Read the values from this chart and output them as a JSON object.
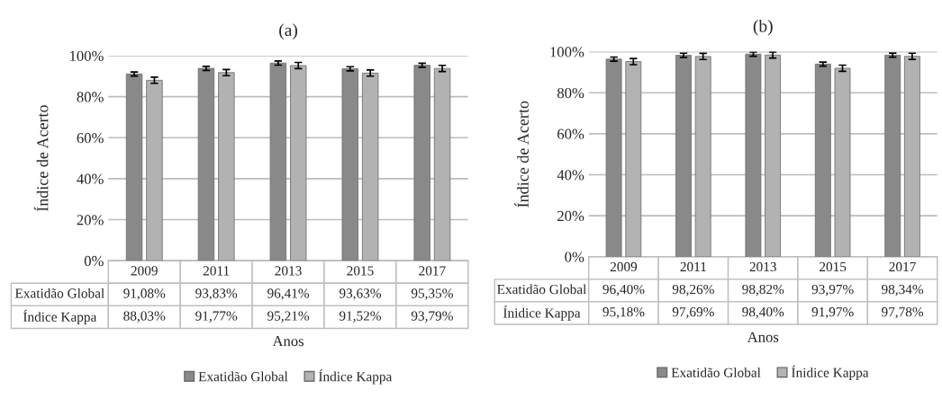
{
  "chart_data": [
    {
      "type": "bar",
      "title": "(a)",
      "ylabel": "Índice de Acerto",
      "xlabel": "Anos",
      "categories": [
        "2009",
        "2011",
        "2013",
        "2015",
        "2017"
      ],
      "series": [
        {
          "name": "Exatidão Global",
          "color": "#898989",
          "values": [
            91.08,
            93.83,
            96.41,
            93.63,
            95.35
          ],
          "errors": [
            1,
            1,
            1,
            1,
            1
          ],
          "value_labels": [
            "91,08%",
            "93,83%",
            "96,41%",
            "93,63%",
            "95,35%"
          ]
        },
        {
          "name": "Índice Kappa",
          "color": "#b2b2b2",
          "values": [
            88.03,
            91.77,
            95.21,
            91.52,
            93.79
          ],
          "errors": [
            1.5,
            1.5,
            1.5,
            1.5,
            1.5
          ],
          "value_labels": [
            "88,03%",
            "91,77%",
            "95,21%",
            "91,52%",
            "93,79%"
          ]
        }
      ],
      "ylim": [
        0,
        100
      ],
      "yticks": [
        {
          "value": 0,
          "label": "0%"
        },
        {
          "value": 20,
          "label": "20%"
        },
        {
          "value": 40,
          "label": "40%"
        },
        {
          "value": 60,
          "label": "60%"
        },
        {
          "value": 80,
          "label": "80%"
        },
        {
          "value": 100,
          "label": "100%"
        }
      ],
      "grid": "y",
      "legend": "bottom"
    },
    {
      "type": "bar",
      "title": "(b)",
      "ylabel": "Índice de Acerto",
      "xlabel": "Anos",
      "categories": [
        "2009",
        "2011",
        "2013",
        "2015",
        "2017"
      ],
      "series": [
        {
          "name": "Exatidão Global",
          "color": "#898989",
          "values": [
            96.4,
            98.26,
            98.82,
            93.97,
            98.34
          ],
          "errors": [
            1,
            1,
            1,
            1,
            1
          ],
          "value_labels": [
            "96,40%",
            "98,26%",
            "98,82%",
            "93,97%",
            "98,34%"
          ]
        },
        {
          "name": "Ínidice Kappa",
          "color": "#b2b2b2",
          "values": [
            95.18,
            97.69,
            98.4,
            91.97,
            97.78
          ],
          "errors": [
            1.5,
            1.5,
            1.5,
            1.5,
            1.5
          ],
          "value_labels": [
            "95,18%",
            "97,69%",
            "98,40%",
            "91,97%",
            "97,78%"
          ]
        }
      ],
      "ylim": [
        0,
        100
      ],
      "yticks": [
        {
          "value": 0,
          "label": "0%"
        },
        {
          "value": 20,
          "label": "20%"
        },
        {
          "value": 40,
          "label": "40%"
        },
        {
          "value": 60,
          "label": "60%"
        },
        {
          "value": 80,
          "label": "80%"
        },
        {
          "value": 100,
          "label": "100%"
        }
      ],
      "grid": "y",
      "legend": "bottom"
    }
  ]
}
